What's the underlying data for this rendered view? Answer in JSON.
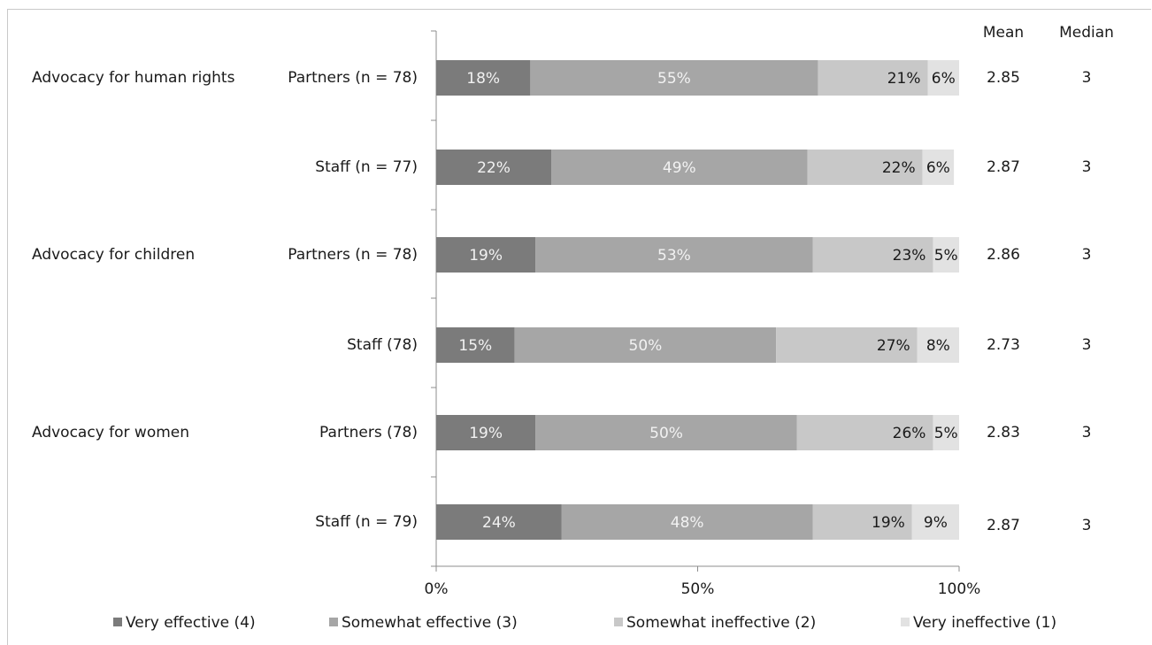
{
  "chart_data": {
    "type": "bar",
    "orientation": "horizontal",
    "stacked": true,
    "percent_stacked": true,
    "xlim": [
      0,
      100
    ],
    "x_ticks": [
      "0%",
      "50%",
      "100%"
    ],
    "legend_position": "bottom",
    "grid": false,
    "group_labels": [
      "Advocacy for human rights",
      "Advocacy for children",
      "Advocacy for women"
    ],
    "rows": [
      {
        "group": "Advocacy for human rights",
        "label": "Partners (n = 78)",
        "mean": "2.85",
        "median": "3"
      },
      {
        "group": "",
        "label": "Staff (n = 77)",
        "mean": "2.87",
        "median": "3"
      },
      {
        "group": "Advocacy for children",
        "label": "Partners (n = 78)",
        "mean": "2.86",
        "median": "3"
      },
      {
        "group": "",
        "label": "Staff (78)",
        "mean": "2.73",
        "median": "3"
      },
      {
        "group": "Advocacy for women",
        "label": "Partners (78)",
        "mean": "2.83",
        "median": "3"
      },
      {
        "group": "",
        "label": "Staff (n = 79)",
        "mean": "2.87",
        "median": "3"
      }
    ],
    "series": [
      {
        "name": "Very effective (4)",
        "color": "#7b7b7b",
        "values": [
          18,
          22,
          19,
          15,
          19,
          24
        ],
        "labels": [
          "18%",
          "22%",
          "19%",
          "15%",
          "19%",
          "24%"
        ]
      },
      {
        "name": "Somewhat effective (3)",
        "color": "#a6a6a6",
        "values": [
          55,
          49,
          53,
          50,
          50,
          48
        ],
        "labels": [
          "55%",
          "49%",
          "53%",
          "50%",
          "50%",
          "48%"
        ]
      },
      {
        "name": "Somewhat ineffective (2)",
        "color": "#c8c8c8",
        "values": [
          21,
          22,
          23,
          27,
          26,
          19
        ],
        "labels": [
          "21%",
          "22%",
          "23%",
          "27%",
          "26%",
          "19%"
        ]
      },
      {
        "name": "Very ineffective (1)",
        "color": "#e2e2e2",
        "values": [
          6,
          6,
          5,
          8,
          5,
          9
        ],
        "labels": [
          "6%",
          "6%",
          "5%",
          "8%",
          "5%",
          "9%"
        ]
      }
    ],
    "stat_headers": {
      "mean": "Mean",
      "median": "Median"
    }
  }
}
